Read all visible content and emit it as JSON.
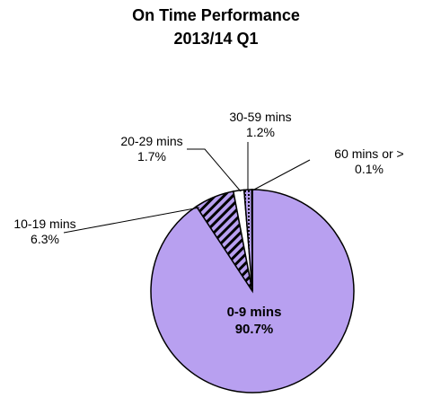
{
  "chart_data": {
    "type": "pie",
    "title_line1": "On Time Performance",
    "title_line2": "2013/14 Q1",
    "slices": [
      {
        "label": "0-9 mins",
        "value": 90.7,
        "value_label": "90.7%",
        "color": "#b8a0f0",
        "pattern": "solid"
      },
      {
        "label": "10-19 mins",
        "value": 6.3,
        "value_label": "6.3%",
        "color": "#b8a0f0",
        "pattern": "hatch"
      },
      {
        "label": "20-29 mins",
        "value": 1.7,
        "value_label": "1.7%",
        "color": "#ffffff",
        "pattern": "solid"
      },
      {
        "label": "30-59 mins",
        "value": 1.2,
        "value_label": "1.2%",
        "color": "#b8a0f0",
        "pattern": "dots"
      },
      {
        "label": "60 mins or >",
        "value": 0.1,
        "value_label": "0.1%",
        "color": "#000000",
        "pattern": "solid"
      }
    ],
    "outline_color": "#000000"
  }
}
